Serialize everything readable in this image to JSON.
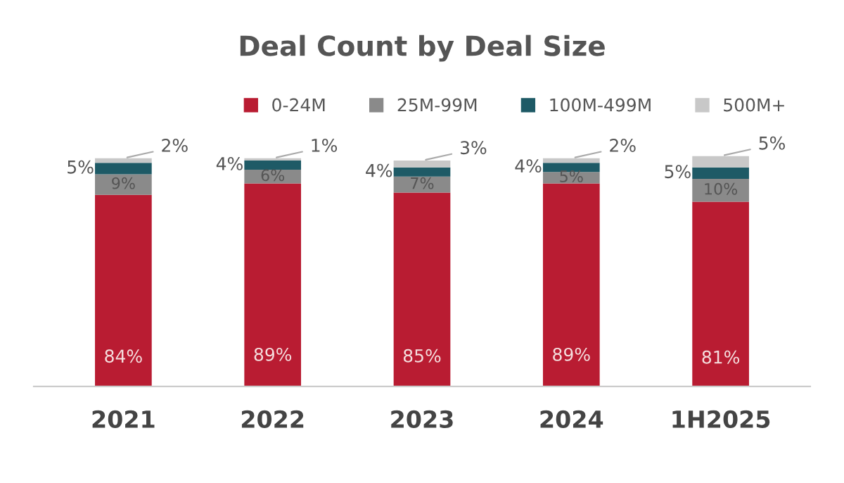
{
  "chart_data": {
    "type": "bar",
    "title": "Deal Count by Deal Size",
    "stacked": true,
    "categories": [
      "2021",
      "2022",
      "2023",
      "2024",
      "1H2025"
    ],
    "series": [
      {
        "name": "0-24M",
        "color": "#b91c32",
        "values": [
          84,
          89,
          85,
          89,
          81
        ],
        "value_labels": [
          "84%",
          "89%",
          "85%",
          "89%",
          "81%"
        ]
      },
      {
        "name": "25M-99M",
        "color": "#8a8a8a",
        "values": [
          9,
          6,
          7,
          5,
          10
        ],
        "value_labels": [
          "9%",
          "6%",
          "7%",
          "5%",
          "10%"
        ]
      },
      {
        "name": "100M-499M",
        "color": "#1e5a66",
        "values": [
          5,
          4,
          4,
          4,
          5
        ],
        "value_labels": [
          "5%",
          "4%",
          "4%",
          "4%",
          "5%"
        ]
      },
      {
        "name": "500M+",
        "color": "#c8c8c8",
        "values": [
          2,
          1,
          3,
          2,
          5
        ],
        "value_labels": [
          "2%",
          "1%",
          "3%",
          "2%",
          "5%"
        ]
      }
    ],
    "legend": "top right",
    "grid": false,
    "tick_labels": "x"
  }
}
